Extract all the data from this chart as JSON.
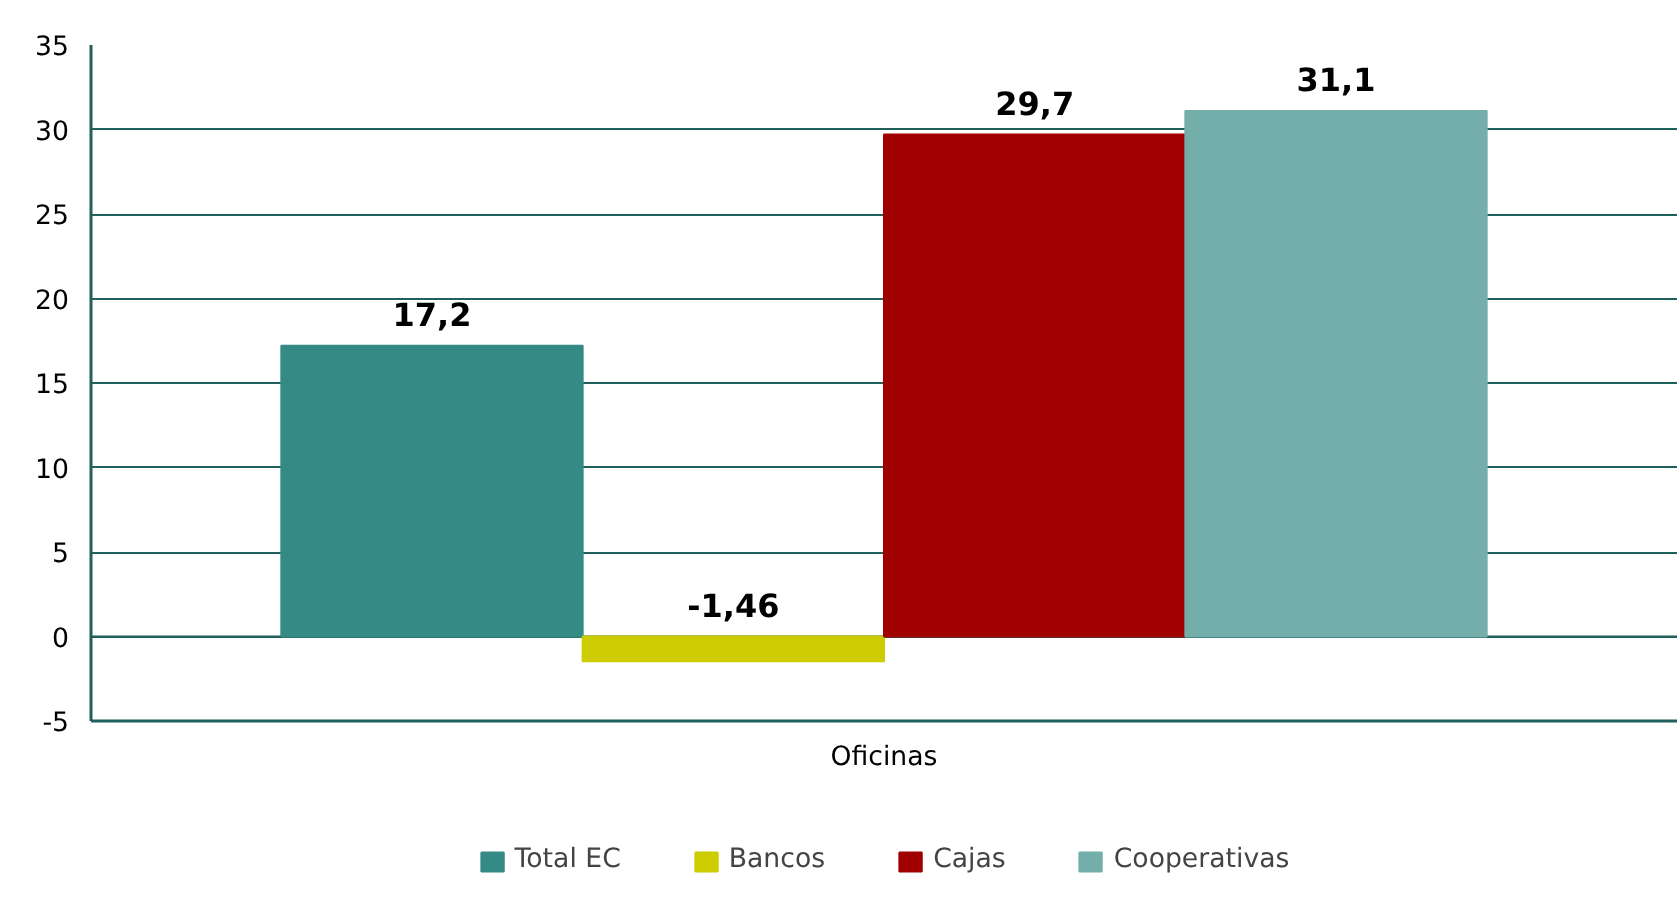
{
  "chart_data": {
    "type": "bar",
    "categories": [
      "Oficinas"
    ],
    "series": [
      {
        "name": "Total EC",
        "color": "#358a85",
        "values": [
          17.2
        ],
        "value_labels": [
          "17,2"
        ]
      },
      {
        "name": "Bancos",
        "color": "#cccc00",
        "values": [
          -1.46
        ],
        "value_labels": [
          "-1,46"
        ]
      },
      {
        "name": "Cajas",
        "color": "#a00000",
        "values": [
          29.7
        ],
        "value_labels": [
          "29,7"
        ]
      },
      {
        "name": "Cooperativas",
        "color": "#74aeab",
        "values": [
          31.1
        ],
        "value_labels": [
          "31,1"
        ]
      }
    ],
    "ylim": [
      -5,
      35
    ],
    "yticks": [
      -5,
      0,
      5,
      10,
      15,
      20,
      25,
      30,
      35
    ],
    "grid": "y",
    "legend": "bottom"
  }
}
